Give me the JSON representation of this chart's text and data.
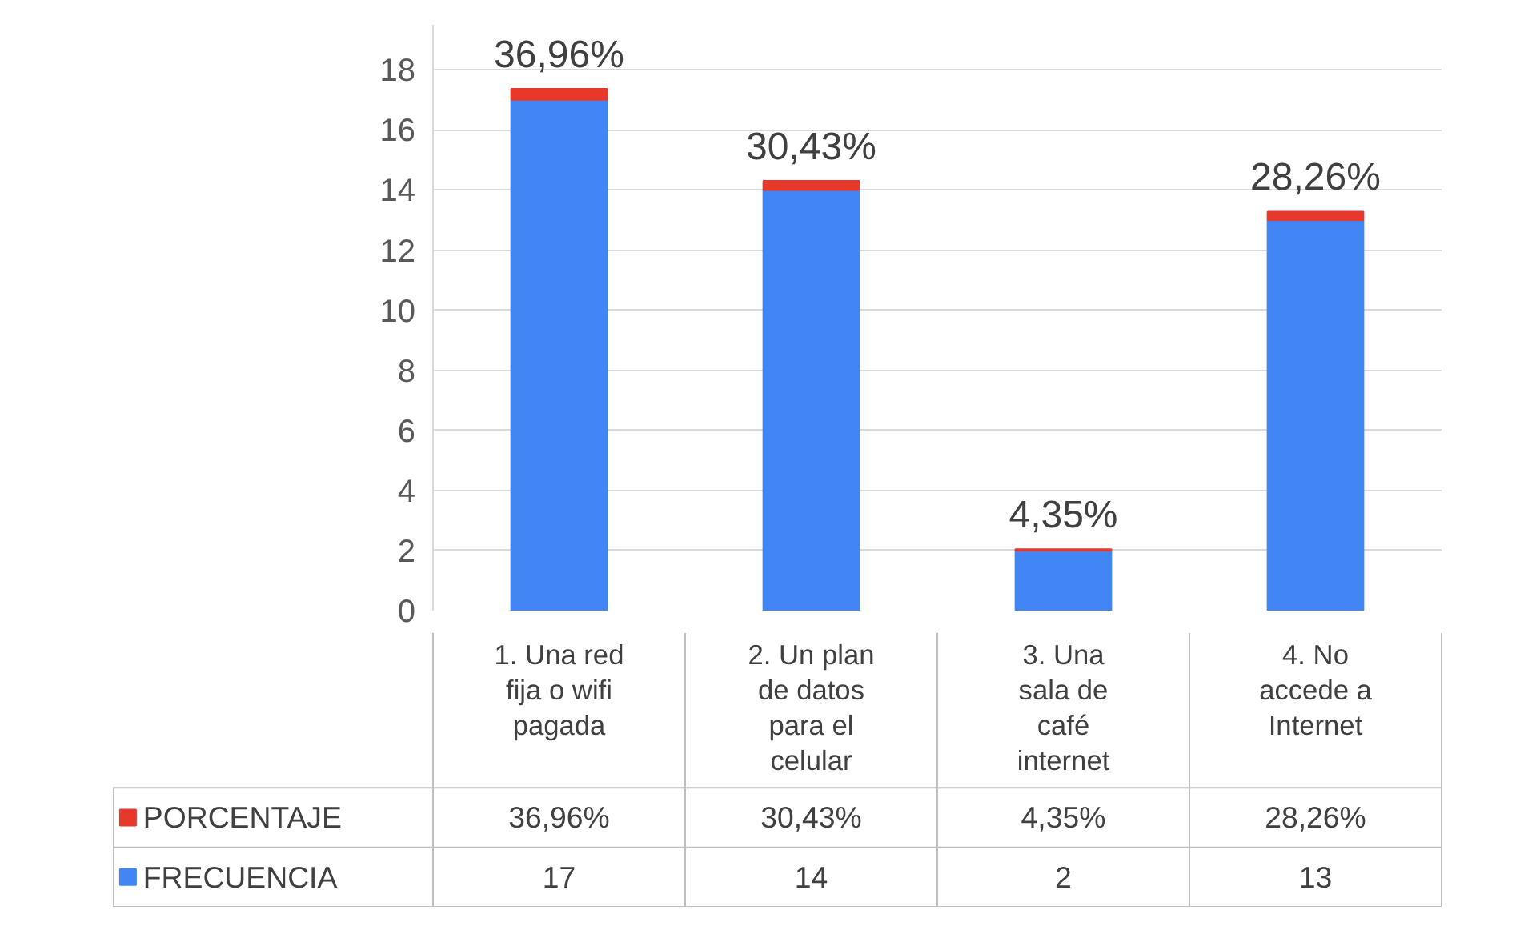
{
  "chart_data": {
    "type": "bar",
    "stacked": true,
    "categories": [
      "1. Una red\nfija o wifi\npagada",
      "2. Un plan\nde datos\npara el\ncelular",
      "3. Una\nsala de\ncafé\ninternet",
      "4. No\naccede a\nInternet"
    ],
    "series": [
      {
        "name": "FRECUENCIA",
        "color": "#4285f4",
        "values": [
          17,
          14,
          2,
          13
        ],
        "value_labels": [
          "17",
          "14",
          "2",
          "13"
        ]
      },
      {
        "name": "PORCENTAJE",
        "color": "#e8382c",
        "values": [
          0.3696,
          0.3043,
          0.0435,
          0.2826
        ],
        "value_labels": [
          "36,96%",
          "30,43%",
          "4,35%",
          "28,26%"
        ]
      }
    ],
    "ylim": [
      0,
      19.5
    ],
    "yticks": [
      0,
      2,
      4,
      6,
      8,
      10,
      12,
      14,
      16,
      18
    ],
    "grid": "y",
    "legend": "bottom"
  }
}
